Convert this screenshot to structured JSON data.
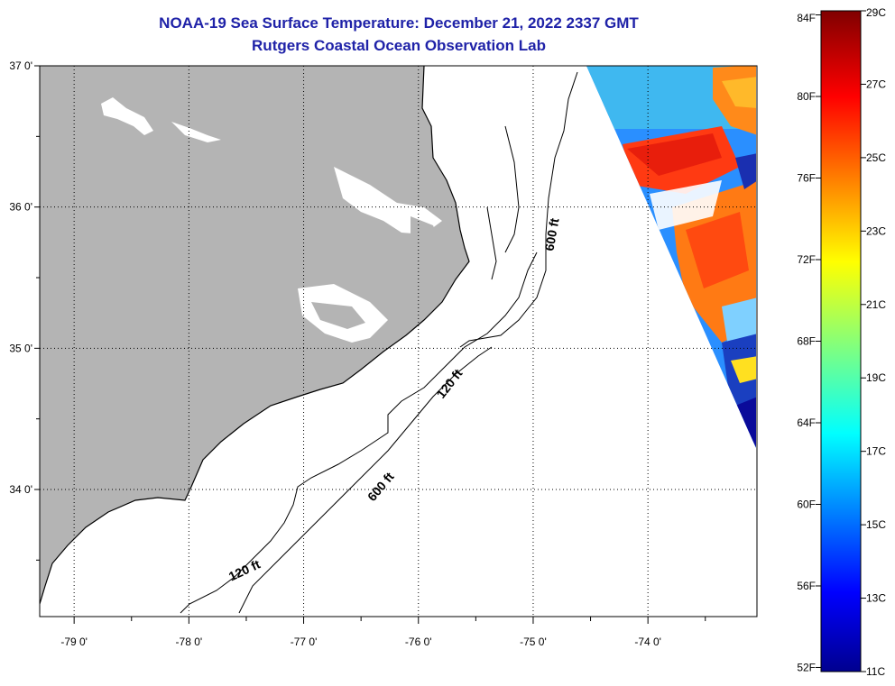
{
  "header": {
    "title": "NOAA-19 Sea Surface Temperature:  December 21, 2022 2337 GMT",
    "subtitle": "Rutgers Coastal Ocean Observation Lab"
  },
  "map": {
    "lon_range": [
      -79.3,
      -73.05
    ],
    "lat_range": [
      33.1,
      37.0
    ],
    "lon_ticks": [
      {
        "value": -79,
        "label": "-79 0'"
      },
      {
        "value": -78,
        "label": "-78 0'"
      },
      {
        "value": -77,
        "label": "-77 0'"
      },
      {
        "value": -76,
        "label": "-76 0'"
      },
      {
        "value": -75,
        "label": "-75 0'"
      },
      {
        "value": -74,
        "label": "-74 0'"
      }
    ],
    "lat_ticks": [
      {
        "value": 37,
        "label": "37 0'"
      },
      {
        "value": 36,
        "label": "36 0'"
      },
      {
        "value": 35,
        "label": "35 0'"
      },
      {
        "value": 34,
        "label": "34 0'"
      }
    ],
    "grid": true,
    "land_color": "#b4b4b4",
    "contour_labels": [
      {
        "label": "600 ft",
        "lon": -74.8,
        "lat": 35.8
      },
      {
        "label": "120 ft",
        "lon": -75.7,
        "lat": 34.73
      },
      {
        "label": "600 ft",
        "lon": -76.3,
        "lat": 34.0
      },
      {
        "label": "120 ft",
        "lon": -77.5,
        "lat": 33.4
      }
    ]
  },
  "colorbar": {
    "min_c": 11,
    "max_c": 29,
    "fahrenheit_labels": [
      "84F",
      "80F",
      "76F",
      "72F",
      "68F",
      "64F",
      "60F",
      "56F",
      "52F"
    ],
    "celsius_labels": [
      "29C",
      "27C",
      "25C",
      "23C",
      "21C",
      "19C",
      "17C",
      "15C",
      "13C",
      "11C"
    ]
  }
}
